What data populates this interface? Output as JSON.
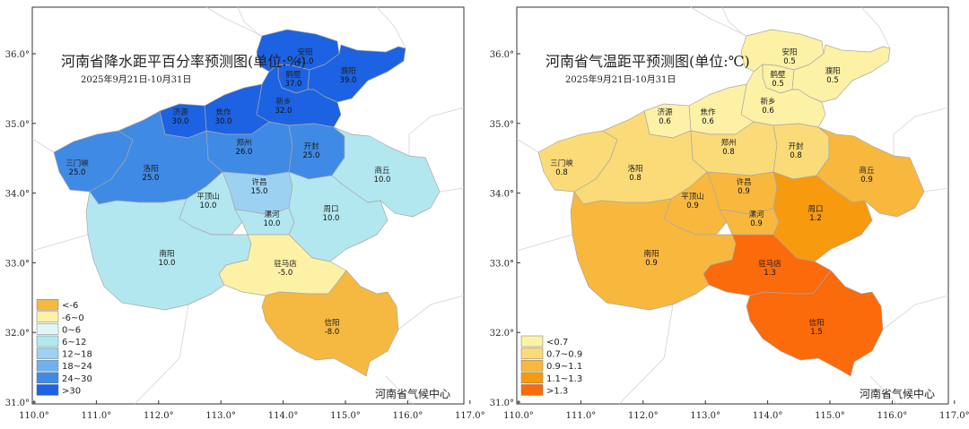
{
  "maps": [
    {
      "title": "河南省降水距平百分率预测图(单位:%)",
      "date_range": "2025年9月21日-10月31日",
      "source": "河南省气候中心",
      "legend": [
        {
          "label": "<-6",
          "color": "#f5b942"
        },
        {
          "label": "-6~0",
          "color": "#fdf1a6"
        },
        {
          "label": "0~6",
          "color": "#dff7f7"
        },
        {
          "label": "6~12",
          "color": "#b3e7f0"
        },
        {
          "label": "12~18",
          "color": "#9cd1f2"
        },
        {
          "label": "18~24",
          "color": "#6fb1ef"
        },
        {
          "label": "24~30",
          "color": "#3f8ae4"
        },
        {
          "label": ">30",
          "color": "#1c62e2"
        }
      ],
      "regions": [
        {
          "name": "安阳",
          "value": "41.0",
          "color": "#1c62e2"
        },
        {
          "name": "鹤壁",
          "value": "37.0",
          "color": "#1c62e2"
        },
        {
          "name": "濮阳",
          "value": "39.0",
          "color": "#1c62e2"
        },
        {
          "name": "新乡",
          "value": "32.0",
          "color": "#1c62e2"
        },
        {
          "name": "焦作",
          "value": "30.0",
          "color": "#1c62e2"
        },
        {
          "name": "济源",
          "value": "30.0",
          "color": "#1c62e2"
        },
        {
          "name": "郑州",
          "value": "26.0",
          "color": "#3f8ae4"
        },
        {
          "name": "开封",
          "value": "25.0",
          "color": "#3f8ae4"
        },
        {
          "name": "三门峡",
          "value": "25.0",
          "color": "#3f8ae4"
        },
        {
          "name": "洛阳",
          "value": "25.0",
          "color": "#3f8ae4"
        },
        {
          "name": "商丘",
          "value": "10.0",
          "color": "#b3e7f0"
        },
        {
          "name": "许昌",
          "value": "15.0",
          "color": "#9cd1f2"
        },
        {
          "name": "平顶山",
          "value": "10.0",
          "color": "#b3e7f0"
        },
        {
          "name": "漯河",
          "value": "10.0",
          "color": "#b3e7f0"
        },
        {
          "name": "周口",
          "value": "10.0",
          "color": "#b3e7f0"
        },
        {
          "name": "南阳",
          "value": "10.0",
          "color": "#b3e7f0"
        },
        {
          "name": "驻马店",
          "value": "-5.0",
          "color": "#fdf1a6"
        },
        {
          "name": "信阳",
          "value": "-8.0",
          "color": "#f5b942"
        }
      ]
    },
    {
      "title": "河南省气温距平预测图(单位:℃)",
      "date_range": "2025年9月21日-10月31日",
      "source": "河南省气候中心",
      "legend": [
        {
          "label": "<0.7",
          "color": "#fdf1a6"
        },
        {
          "label": "0.7~0.9",
          "color": "#fbdb78"
        },
        {
          "label": "0.9~1.1",
          "color": "#f8b83e"
        },
        {
          "label": "1.1~1.3",
          "color": "#f79a0e"
        },
        {
          "label": ">1.3",
          "color": "#fb6a0b"
        }
      ],
      "regions": [
        {
          "name": "安阳",
          "value": "0.5",
          "color": "#fdf1a6"
        },
        {
          "name": "鹤壁",
          "value": "0.5",
          "color": "#fdf1a6"
        },
        {
          "name": "濮阳",
          "value": "0.5",
          "color": "#fdf1a6"
        },
        {
          "name": "新乡",
          "value": "0.6",
          "color": "#fdf1a6"
        },
        {
          "name": "焦作",
          "value": "0.6",
          "color": "#fdf1a6"
        },
        {
          "name": "济源",
          "value": "0.6",
          "color": "#fdf1a6"
        },
        {
          "name": "郑州",
          "value": "0.8",
          "color": "#fbdb78"
        },
        {
          "name": "开封",
          "value": "0.8",
          "color": "#fbdb78"
        },
        {
          "name": "三门峡",
          "value": "0.8",
          "color": "#fbdb78"
        },
        {
          "name": "洛阳",
          "value": "0.8",
          "color": "#fbdb78"
        },
        {
          "name": "商丘",
          "value": "0.9",
          "color": "#f8b83e"
        },
        {
          "name": "许昌",
          "value": "0.9",
          "color": "#f8b83e"
        },
        {
          "name": "平顶山",
          "value": "0.9",
          "color": "#f8b83e"
        },
        {
          "name": "漯河",
          "value": "0.9",
          "color": "#f8b83e"
        },
        {
          "name": "周口",
          "value": "1.2",
          "color": "#f79a0e"
        },
        {
          "name": "南阳",
          "value": "0.9",
          "color": "#f8b83e"
        },
        {
          "name": "驻马店",
          "value": "1.3",
          "color": "#fb6a0b"
        },
        {
          "name": "信阳",
          "value": "1.5",
          "color": "#fb6a0b"
        }
      ]
    }
  ],
  "axes": {
    "x_ticks": [
      "110.0°",
      "111.0°",
      "112.0°",
      "113.0°",
      "114.0°",
      "115.0°",
      "116.0°",
      "117.0°"
    ],
    "y_ticks": [
      "31.0°",
      "32.0°",
      "33.0°",
      "34.0°",
      "35.0°",
      "36.0°"
    ]
  }
}
